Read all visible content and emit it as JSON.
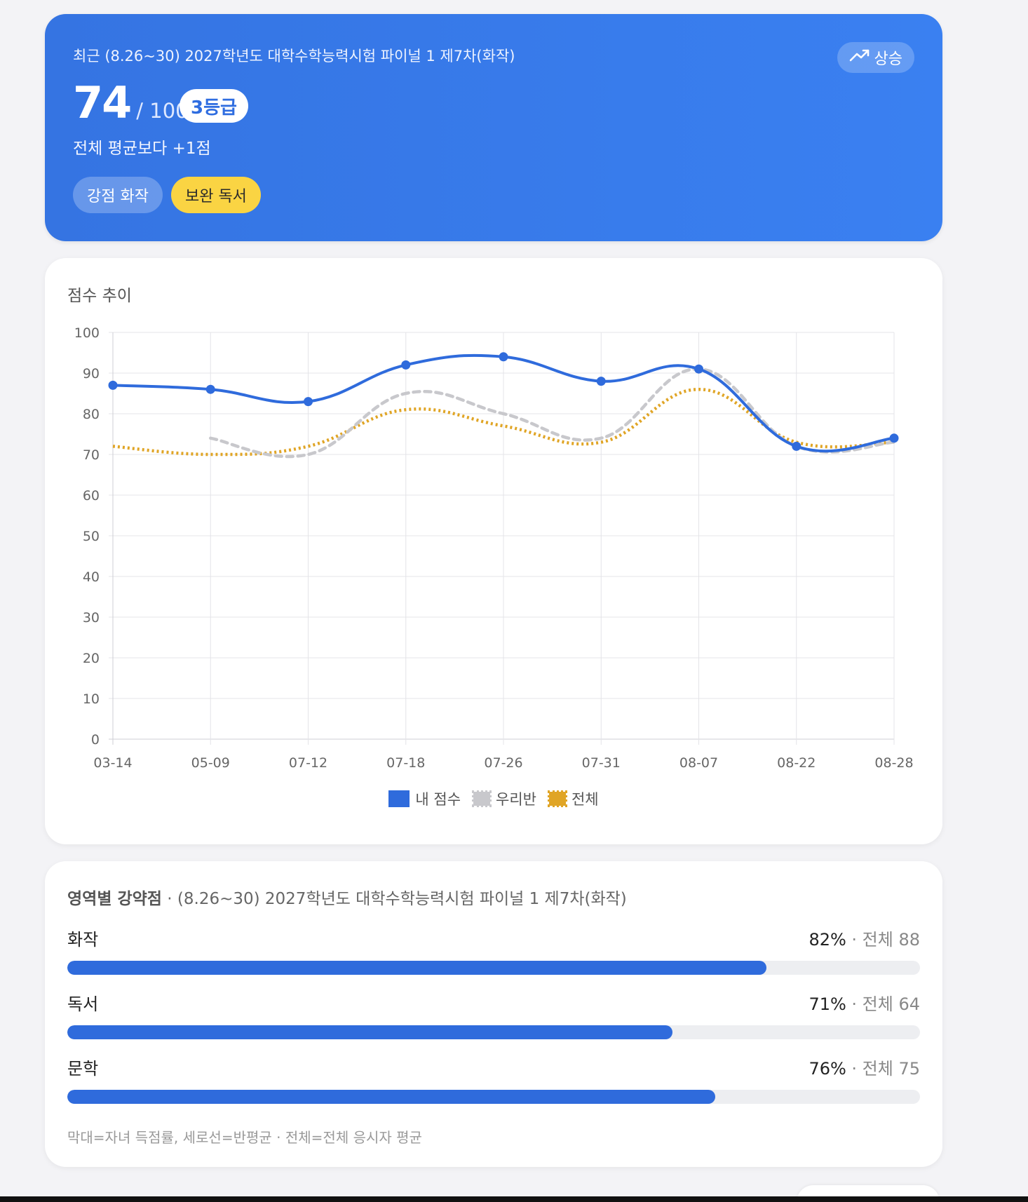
{
  "hero": {
    "subtitle": "최근 (8.26~30) 2027학년도 대학수학능력시험 파이널 1 제7차(화작)",
    "trend_label": "상승",
    "score": "74",
    "score_total": "/ 100",
    "grade": "3등급",
    "diff": "전체 평균보다 +1점",
    "strength_tag": "강점 화작",
    "weakness_tag": "보완 독서"
  },
  "chart_card": {
    "title": "점수 추이"
  },
  "chart_data": {
    "type": "line",
    "title": "점수 추이",
    "x": [
      "03-14",
      "05-09",
      "07-12",
      "07-18",
      "07-26",
      "07-31",
      "08-07",
      "08-22",
      "08-28"
    ],
    "ylim": [
      0,
      100
    ],
    "yticks": [
      0,
      10,
      20,
      30,
      40,
      50,
      60,
      70,
      80,
      90,
      100
    ],
    "grid": true,
    "legend_position": "bottom",
    "series": [
      {
        "name": "내 점수",
        "values": [
          87,
          86,
          83,
          92,
          94,
          88,
          91,
          72,
          74
        ],
        "color": "#2f6bdc",
        "style": "solid",
        "markers": true
      },
      {
        "name": "우리반",
        "values": [
          null,
          74,
          70,
          85,
          80,
          74,
          91,
          72,
          73
        ],
        "color": "#c8c8cc",
        "style": "dashed",
        "markers": false
      },
      {
        "name": "전체",
        "values": [
          72,
          70,
          72,
          81,
          77,
          73,
          86,
          73,
          73
        ],
        "color": "#e0a526",
        "style": "dotted",
        "markers": false
      }
    ]
  },
  "areas": {
    "title_bold": "영역별 강약점",
    "title_rest": " · (8.26~30) 2027학년도 대학수학능력시험 파이널 1 제7차(화작)",
    "items": [
      {
        "label": "화작",
        "pct": "82%",
        "avg": " · 전체 88",
        "value": 82
      },
      {
        "label": "독서",
        "pct": "71%",
        "avg": " · 전체 64",
        "value": 71
      },
      {
        "label": "문학",
        "pct": "76%",
        "avg": " · 전체 75",
        "value": 76
      }
    ],
    "footnote": "막대=자녀 득점률, 세로선=반평균 · 전체=전체 응시자 평균"
  },
  "colors": {
    "accent": "#2f6bdc",
    "hero_bg": "#3a7ce9",
    "weak_tag": "#fad443",
    "track": "#edeef1"
  },
  "icons": {
    "trend": "trending-up-icon"
  }
}
